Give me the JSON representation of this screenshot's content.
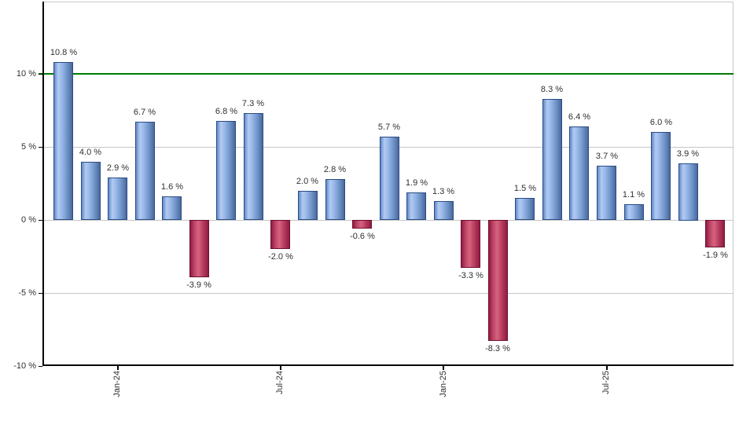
{
  "chart_data": {
    "type": "bar",
    "values": [
      10.8,
      4.0,
      2.9,
      6.7,
      1.6,
      -3.9,
      6.8,
      7.3,
      -2.0,
      2.0,
      2.8,
      -0.6,
      5.7,
      1.9,
      1.3,
      -3.3,
      -8.3,
      1.5,
      8.3,
      6.4,
      3.7,
      1.1,
      6.0,
      3.9,
      -1.9
    ],
    "value_labels": [
      "10.8 %",
      "4.0 %",
      "2.9 %",
      "6.7 %",
      "1.6 %",
      "-3.9 %",
      "6.8 %",
      "7.3 %",
      "-2.0 %",
      "2.0 %",
      "2.8 %",
      "-0.6 %",
      "5.7 %",
      "1.9 %",
      "1.3 %",
      "-3.3 %",
      "-8.3 %",
      "1.5 %",
      "8.3 %",
      "6.4 %",
      "3.7 %",
      "1.1 %",
      "6.0 %",
      "3.9 %",
      "-1.9 %"
    ],
    "x_ticks": [
      {
        "label": "Jan-24",
        "bar_index": 2
      },
      {
        "label": "Jul-24",
        "bar_index": 8
      },
      {
        "label": "Jan-25",
        "bar_index": 14
      },
      {
        "label": "Jul-25",
        "bar_index": 20
      }
    ],
    "y_ticks": [
      {
        "label": "10 %",
        "value": 10
      },
      {
        "label": "5 %",
        "value": 5
      },
      {
        "label": "0 %",
        "value": 0
      },
      {
        "label": "-5 %",
        "value": -5
      },
      {
        "label": "-10 %",
        "value": -10
      }
    ],
    "ylim": [
      -10,
      14.9
    ],
    "reference_line": {
      "value": 10
    },
    "grid": true,
    "legend": false,
    "title": ""
  },
  "colors": {
    "positive_border": "#2a4c84",
    "positive_gradient": "linear-gradient(90deg, #6189c9 0%, #b3cbf2 22%, #95b4e6 45%, #6e93c7 72%, #4a689e 100%)",
    "negative_border": "#701031",
    "negative_gradient": "linear-gradient(90deg, #8e1d40 0%, #c2476a 25%, #d5647f 45%, #b63a5e 72%, #8e1d40 100%)",
    "reference_line": "#007a00",
    "grid_line": "#c6c6c6",
    "axis_line": "#000000",
    "frame_border": "#c8c8c8",
    "label_text": "#303030",
    "background": "#ffffff"
  }
}
